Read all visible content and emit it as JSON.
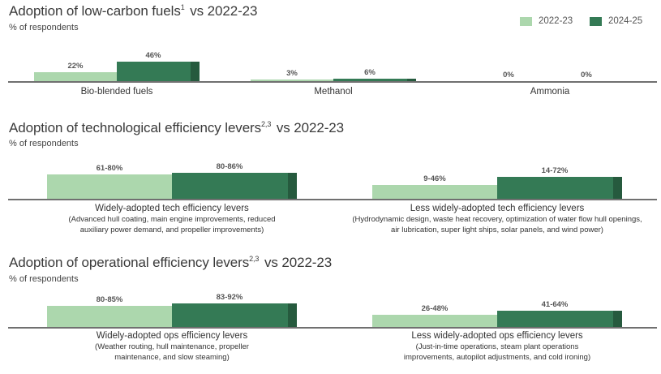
{
  "legend": [
    {
      "label": "2022-23",
      "color": "#acd7ad"
    },
    {
      "label": "2024-25",
      "color": "#347a55"
    }
  ],
  "chart_data": [
    {
      "type": "bar",
      "title": "Adoption of low-carbon fuels",
      "title_sup": "1",
      "title_suffix": "vs 2022-23",
      "subtitle": "% of respondents",
      "ylabel": "% of respondents",
      "ylim": [
        0,
        100
      ],
      "categories": [
        "Bio-blended fuels",
        "Methanol",
        "Ammonia"
      ],
      "series": [
        {
          "name": "2022-23",
          "values": [
            22,
            3,
            0
          ],
          "labels": [
            "22%",
            "3%",
            "0%"
          ]
        },
        {
          "name": "2024-25",
          "values": [
            46,
            6,
            0
          ],
          "labels": [
            "46%",
            "6%",
            "0%"
          ]
        }
      ]
    },
    {
      "type": "bar",
      "title": "Adoption of technological efficiency levers",
      "title_sup": "2,3",
      "title_suffix": "vs 2022-23",
      "subtitle": "% of respondents",
      "ylabel": "% of respondents",
      "ylim": [
        0,
        100
      ],
      "categories": [
        "Widely-adopted tech efficiency levers",
        "Less widely-adopted tech efficiency levers"
      ],
      "category_descriptions": [
        [
          "(Advanced hull coating, main engine improvements, reduced",
          "auxiliary power demand, and propeller improvements)"
        ],
        [
          "(Hydrodynamic design, waste heat recovery, optimization of water flow hull openings,",
          "air lubrication, super light ships, solar panels, and wind power)"
        ]
      ],
      "series": [
        {
          "name": "2022-23",
          "range_low": [
            61,
            9
          ],
          "range_high": [
            80,
            46
          ],
          "labels": [
            "61-80%",
            "9-46%"
          ]
        },
        {
          "name": "2024-25",
          "range_low": [
            80,
            14
          ],
          "range_high": [
            86,
            72
          ],
          "labels": [
            "80-86%",
            "14-72%"
          ]
        }
      ]
    },
    {
      "type": "bar",
      "title": "Adoption of operational efficiency levers",
      "title_sup": "2,3",
      "title_suffix": "vs 2022-23",
      "subtitle": "% of respondents",
      "ylabel": "% of respondents",
      "ylim": [
        0,
        100
      ],
      "categories": [
        "Widely-adopted ops efficiency levers",
        "Less widely-adopted ops efficiency levers"
      ],
      "category_descriptions": [
        [
          "(Weather routing, hull maintenance, propeller",
          "maintenance, and slow steaming)"
        ],
        [
          "(Just-in-time operations, steam plant operations",
          "improvements, autopilot adjustments, and cold ironing)"
        ]
      ],
      "series": [
        {
          "name": "2022-23",
          "range_low": [
            80,
            26
          ],
          "range_high": [
            85,
            48
          ],
          "labels": [
            "80-85%",
            "26-48%"
          ]
        },
        {
          "name": "2024-25",
          "range_low": [
            83,
            41
          ],
          "range_high": [
            92,
            64
          ],
          "labels": [
            "83-92%",
            "41-64%"
          ]
        }
      ]
    }
  ]
}
